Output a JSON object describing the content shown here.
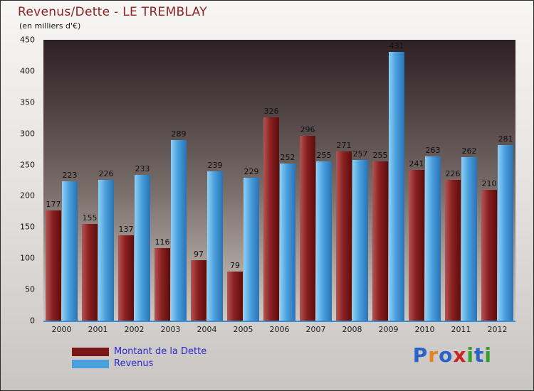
{
  "chart_data": {
    "type": "bar",
    "title": "Revenus/Dette - LE TREMBLAY",
    "subtitle": "(en milliers d'€)",
    "categories": [
      "2000",
      "2001",
      "2002",
      "2003",
      "2004",
      "2005",
      "2006",
      "2007",
      "2008",
      "2009",
      "2010",
      "2011",
      "2012"
    ],
    "series": [
      {
        "name": "Montant de la Dette",
        "color": "#7a1616",
        "values": [
          177,
          155,
          137,
          116,
          97,
          79,
          326,
          296,
          271,
          255,
          241,
          226,
          210
        ]
      },
      {
        "name": "Revenus",
        "color": "#4aa0dd",
        "values": [
          223,
          226,
          233,
          289,
          239,
          229,
          252,
          255,
          257,
          431,
          263,
          262,
          281
        ]
      }
    ],
    "xlabel": "",
    "ylabel": "",
    "ylim": [
      0,
      450
    ],
    "ytick_interval": 50,
    "grid": false,
    "legend_position": "bottom-left"
  },
  "logo": {
    "text": "Proxiti",
    "letters": [
      {
        "ch": "P",
        "color": "#2b62c9"
      },
      {
        "ch": "r",
        "color": "#e8821e"
      },
      {
        "ch": "o",
        "color": "#2b62c9"
      },
      {
        "ch": "x",
        "color": "#cc2222"
      },
      {
        "ch": "i",
        "color": "#33a02c"
      },
      {
        "ch": "t",
        "color": "#2b62c9"
      },
      {
        "ch": "i",
        "color": "#33a02c"
      }
    ]
  }
}
